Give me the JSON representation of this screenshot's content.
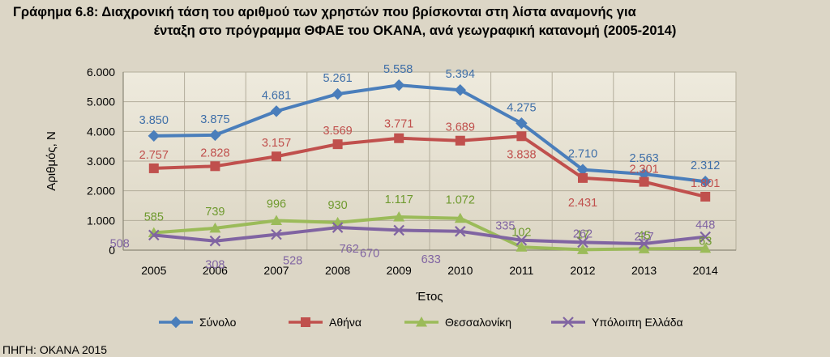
{
  "title_line1": "Γράφημα 6.8: Διαχρονική τάση του αριθμού των χρηστών που βρίσκονται στη λίστα αναμονής για",
  "title_line2": "ένταξη στο πρόγραμμα ΘΦΑΕ του ΟΚΑΝΑ, ανά γεωγραφική κατανομή (2005-2014)",
  "source": "ΠΗΓΗ: ΟΚΑΝΑ 2015",
  "chart_data": {
    "type": "line",
    "xlabel": "Έτος",
    "ylabel": "Αριθμός, Ν",
    "ylim": [
      0,
      6000
    ],
    "yticks": [
      0,
      1000,
      2000,
      3000,
      4000,
      5000,
      6000
    ],
    "ytick_labels": [
      "0",
      "1.000",
      "2.000",
      "3.000",
      "4.000",
      "5.000",
      "6.000"
    ],
    "categories": [
      "2005",
      "2006",
      "2007",
      "2008",
      "2009",
      "2010",
      "2011",
      "2012",
      "2013",
      "2014"
    ],
    "grid": true,
    "legend_position": "bottom",
    "series": [
      {
        "name": "Σύνολο",
        "color": "#4a7ebb",
        "marker": "diamond",
        "values": [
          3850,
          3875,
          4681,
          5261,
          5558,
          5394,
          4275,
          2710,
          2563,
          2312
        ],
        "labels": [
          "3.850",
          "3.875",
          "4.681",
          "5.261",
          "5.558",
          "5.394",
          "4.275",
          "2.710",
          "2.563",
          "2.312"
        ]
      },
      {
        "name": "Αθήνα",
        "color": "#c0504d",
        "marker": "square",
        "values": [
          2757,
          2828,
          3157,
          3569,
          3771,
          3689,
          3838,
          2431,
          2301,
          1801
        ],
        "labels": [
          "2.757",
          "2.828",
          "3.157",
          "3.569",
          "3.771",
          "3.689",
          "3.838",
          "2.431",
          "2.301",
          "1.801"
        ]
      },
      {
        "name": "Θεσσαλονίκη",
        "color": "#9bbb59",
        "marker": "triangle",
        "values": [
          585,
          739,
          996,
          930,
          1117,
          1072,
          102,
          17,
          45,
          63
        ],
        "labels": [
          "585",
          "739",
          "996",
          "930",
          "1.117",
          "1.072",
          "102",
          "17",
          "45",
          "63"
        ]
      },
      {
        "name": "Υπόλοιπη Ελλάδα",
        "color": "#8064a2",
        "marker": "x",
        "values": [
          508,
          308,
          528,
          762,
          670,
          633,
          335,
          262,
          217,
          448
        ],
        "labels": [
          "508",
          "308",
          "528",
          "762",
          "670",
          "633",
          "335",
          "262",
          "217",
          "448"
        ]
      }
    ]
  }
}
